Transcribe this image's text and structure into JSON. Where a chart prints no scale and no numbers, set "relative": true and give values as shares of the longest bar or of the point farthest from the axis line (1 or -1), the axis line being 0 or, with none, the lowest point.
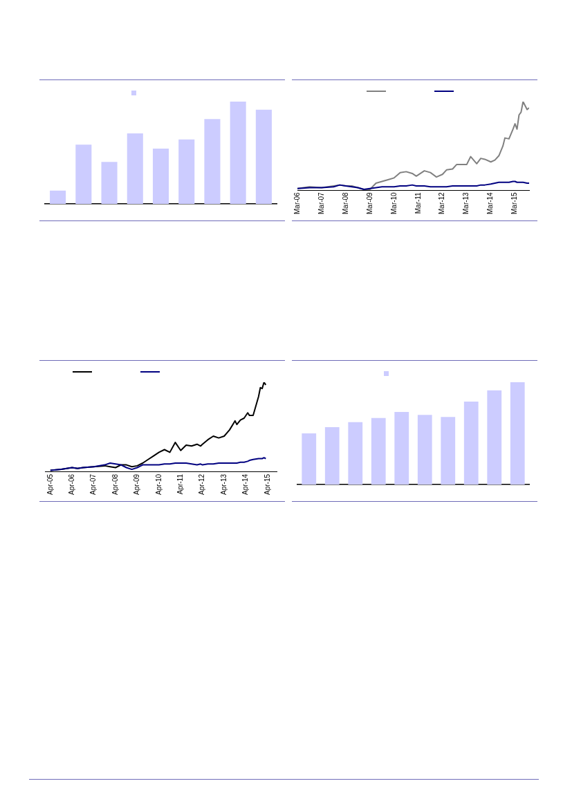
{
  "chart_data": [
    {
      "type": "bar",
      "relative": true,
      "categories": [
        null,
        null,
        null,
        null,
        null,
        null,
        null,
        null,
        null
      ],
      "series": [
        {
          "color": "#ccccff",
          "values": [
            0.13,
            0.58,
            0.41,
            0.69,
            0.54,
            0.63,
            0.83,
            1,
            0.92
          ]
        }
      ]
    },
    {
      "type": "line",
      "relative": true,
      "marker": "none",
      "x": [
        "2006-03",
        "2006-09",
        "2007-03",
        "2007-09",
        "2007-12",
        "2008-03",
        "2008-06",
        "2008-09",
        "2008-12",
        "2009-03",
        "2009-06",
        "2009-09",
        "2009-12",
        "2010-03",
        "2010-06",
        "2010-09",
        "2010-12",
        "2011-02",
        "2011-06",
        "2011-09",
        "2011-12",
        "2012-03",
        "2012-05",
        "2012-08",
        "2012-10",
        "2013-03",
        "2013-05",
        "2013-08",
        "2013-10",
        "2013-12",
        "2014-03",
        "2014-05",
        "2014-07",
        "2014-09",
        "2014-10",
        "2014-12",
        "2015-02",
        "2015-03",
        "2015-04",
        "2015-05",
        "2015-06",
        "2015-07",
        "2015-09",
        "2015-10"
      ],
      "xlim": [
        "2006-03",
        "2015-10"
      ],
      "xticks": [
        {
          "value": "2006-03",
          "label": "Mar-06"
        },
        {
          "value": "2007-03",
          "label": "Mar-07"
        },
        {
          "value": "2008-03",
          "label": "Mar-08"
        },
        {
          "value": "2009-03",
          "label": "Mar-09"
        },
        {
          "value": "2010-03",
          "label": "Mar-10"
        },
        {
          "value": "2011-03",
          "label": "Mar-11"
        },
        {
          "value": "2012-03",
          "label": "Mar-12"
        },
        {
          "value": "2013-03",
          "label": "Mar-13"
        },
        {
          "value": "2014-03",
          "label": "Mar-14"
        },
        {
          "value": "2015-03",
          "label": "Mar-15"
        }
      ],
      "series": [
        {
          "color": "#808080",
          "values": [
            0.02,
            0.04,
            0.03,
            0.05,
            0.06,
            0.05,
            0.05,
            0.03,
            0.01,
            0.01,
            0.08,
            0.1,
            0.12,
            0.14,
            0.2,
            0.21,
            0.19,
            0.16,
            0.22,
            0.2,
            0.15,
            0.18,
            0.23,
            0.24,
            0.29,
            0.29,
            0.38,
            0.3,
            0.36,
            0.35,
            0.32,
            0.34,
            0.39,
            0.5,
            0.59,
            0.58,
            0.69,
            0.75,
            0.69,
            0.85,
            0.88,
            1,
            0.91,
            0.93
          ]
        },
        {
          "color": "#000080",
          "values": [
            0.02,
            0.03,
            0.03,
            0.04,
            0.06,
            0.05,
            0.04,
            0.03,
            0.01,
            0.02,
            0.03,
            0.04,
            0.04,
            0.04,
            0.05,
            0.05,
            0.06,
            0.05,
            0.05,
            0.04,
            0.04,
            0.04,
            0.04,
            0.05,
            0.05,
            0.05,
            0.05,
            0.05,
            0.06,
            0.06,
            0.07,
            0.08,
            0.09,
            0.09,
            0.09,
            0.09,
            0.1,
            0.1,
            0.09,
            0.09,
            0.09,
            0.09,
            0.08,
            0.08
          ]
        }
      ]
    },
    {
      "type": "line",
      "relative": true,
      "marker": "none",
      "x": [
        "2005-04",
        "2005-10",
        "2006-04",
        "2006-07",
        "2006-10",
        "2007-04",
        "2007-10",
        "2008-01",
        "2008-04",
        "2008-07",
        "2008-10",
        "2009-01",
        "2009-04",
        "2009-07",
        "2009-10",
        "2010-01",
        "2010-04",
        "2010-07",
        "2010-10",
        "2011-01",
        "2011-04",
        "2011-07",
        "2011-10",
        "2012-01",
        "2012-03",
        "2012-04",
        "2012-07",
        "2012-10",
        "2013-01",
        "2013-04",
        "2013-07",
        "2013-10",
        "2013-11",
        "2014-01",
        "2014-03",
        "2014-05",
        "2014-06",
        "2014-08",
        "2014-11",
        "2014-12",
        "2015-01",
        "2015-02",
        "2015-03"
      ],
      "xlim": [
        "2005-01",
        "2015-09"
      ],
      "xticks": [
        {
          "value": "2005-04",
          "label": "Apr-05"
        },
        {
          "value": "2006-04",
          "label": "Apr-06"
        },
        {
          "value": "2007-04",
          "label": "Apr-07"
        },
        {
          "value": "2008-04",
          "label": "Apr-08"
        },
        {
          "value": "2009-04",
          "label": "Apr-09"
        },
        {
          "value": "2010-04",
          "label": "Apr-10"
        },
        {
          "value": "2011-04",
          "label": "Apr-11"
        },
        {
          "value": "2012-04",
          "label": "Apr-12"
        },
        {
          "value": "2013-04",
          "label": "Apr-13"
        },
        {
          "value": "2014-04",
          "label": "Apr-14"
        },
        {
          "value": "2015-04",
          "label": "Apr-15"
        }
      ],
      "series": [
        {
          "color": "#000000",
          "values": [
            0.02,
            0.03,
            0.05,
            0.04,
            0.05,
            0.06,
            0.07,
            0.06,
            0.05,
            0.08,
            0.08,
            0.06,
            0.07,
            0.1,
            0.14,
            0.18,
            0.22,
            0.25,
            0.22,
            0.33,
            0.24,
            0.3,
            0.29,
            0.31,
            0.29,
            0.31,
            0.36,
            0.4,
            0.38,
            0.4,
            0.47,
            0.57,
            0.53,
            0.58,
            0.6,
            0.66,
            0.63,
            0.63,
            0.84,
            0.94,
            0.93,
            1,
            0.97
          ]
        },
        {
          "color": "#000080",
          "values": [
            0.02,
            0.03,
            0.05,
            0.04,
            0.05,
            0.06,
            0.08,
            0.1,
            0.09,
            0.08,
            0.05,
            0.03,
            0.05,
            0.08,
            0.08,
            0.08,
            0.08,
            0.09,
            0.09,
            0.1,
            0.1,
            0.1,
            0.09,
            0.08,
            0.09,
            0.08,
            0.09,
            0.09,
            0.1,
            0.1,
            0.1,
            0.1,
            0.1,
            0.11,
            0.11,
            0.12,
            0.13,
            0.14,
            0.15,
            0.15,
            0.15,
            0.16,
            0.15
          ]
        }
      ]
    },
    {
      "type": "bar",
      "relative": true,
      "categories": [
        null,
        null,
        null,
        null,
        null,
        null,
        null,
        null,
        null,
        null
      ],
      "series": [
        {
          "color": "#ccccff",
          "values": [
            0.5,
            0.56,
            0.61,
            0.65,
            0.71,
            0.68,
            0.66,
            0.81,
            0.92,
            1
          ]
        }
      ]
    }
  ]
}
